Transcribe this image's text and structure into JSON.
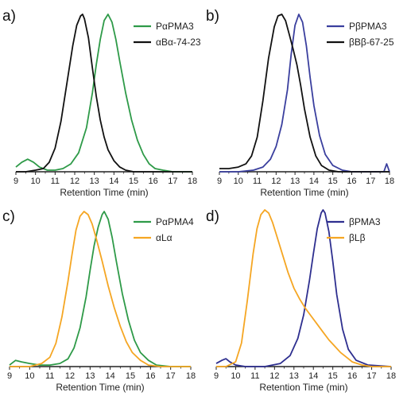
{
  "chart_data": [
    {
      "type": "line",
      "panel_label": "a)",
      "xlabel": "Retention Time (min)",
      "xlim": [
        9,
        18
      ],
      "x_ticks": [
        "9",
        "10",
        "11",
        "12",
        "13",
        "14",
        "15",
        "16",
        "17",
        "18"
      ],
      "legend_position": "top-right",
      "series": [
        {
          "name": "PαPMA3",
          "color": "#2e9a48",
          "x": [
            9.0,
            9.3,
            9.6,
            9.9,
            10.2,
            10.6,
            11.0,
            11.4,
            11.8,
            12.2,
            12.6,
            12.9,
            13.1,
            13.3,
            13.5,
            13.7,
            13.9,
            14.1,
            14.3,
            14.6,
            14.9,
            15.2,
            15.5,
            15.8,
            16.1,
            16.5,
            17.0,
            18.0
          ],
          "y": [
            0.03,
            0.06,
            0.08,
            0.06,
            0.03,
            0.01,
            0.01,
            0.02,
            0.05,
            0.12,
            0.28,
            0.5,
            0.68,
            0.84,
            0.96,
            1.0,
            0.95,
            0.84,
            0.7,
            0.5,
            0.33,
            0.2,
            0.11,
            0.05,
            0.02,
            0.01,
            0.0,
            0.0
          ]
        },
        {
          "name": "αBα-74-23",
          "color": "#111111",
          "x": [
            9.0,
            9.5,
            10.0,
            10.4,
            10.7,
            11.0,
            11.3,
            11.6,
            11.9,
            12.1,
            12.3,
            12.4,
            12.5,
            12.7,
            12.9,
            13.1,
            13.3,
            13.5,
            13.7,
            14.0,
            14.3,
            14.6,
            15.0,
            15.5,
            18.0
          ],
          "y": [
            0.0,
            0.0,
            0.01,
            0.02,
            0.06,
            0.15,
            0.32,
            0.56,
            0.8,
            0.93,
            0.99,
            1.0,
            0.97,
            0.85,
            0.66,
            0.48,
            0.33,
            0.22,
            0.14,
            0.07,
            0.03,
            0.01,
            0.0,
            0.0,
            0.0
          ]
        }
      ]
    },
    {
      "type": "line",
      "panel_label": "b)",
      "xlabel": "Retention Time (min)",
      "xlim": [
        9,
        18
      ],
      "x_ticks": [
        "9",
        "10",
        "11",
        "12",
        "13",
        "14",
        "15",
        "16",
        "17",
        "18"
      ],
      "legend_position": "top-right",
      "series": [
        {
          "name": "PβPMA3",
          "color": "#3a3f9e",
          "x": [
            9.0,
            10.0,
            10.8,
            11.3,
            11.7,
            12.0,
            12.3,
            12.6,
            12.8,
            13.0,
            13.2,
            13.4,
            13.6,
            13.8,
            14.0,
            14.3,
            14.6,
            15.0,
            15.5,
            16.0,
            17.0,
            17.7,
            17.85,
            18.0
          ],
          "y": [
            0.0,
            0.0,
            0.01,
            0.03,
            0.08,
            0.16,
            0.3,
            0.52,
            0.75,
            0.93,
            1.0,
            0.95,
            0.8,
            0.6,
            0.42,
            0.23,
            0.11,
            0.04,
            0.01,
            0.0,
            0.0,
            0.0,
            0.05,
            0.0
          ]
        },
        {
          "name": "βBβ-67-25",
          "color": "#111111",
          "x": [
            9.0,
            9.5,
            10.0,
            10.4,
            10.7,
            11.0,
            11.3,
            11.6,
            11.9,
            12.1,
            12.3,
            12.5,
            12.7,
            12.9,
            13.1,
            13.3,
            13.5,
            13.8,
            14.1,
            14.4,
            14.8,
            15.3,
            16.0,
            18.0
          ],
          "y": [
            0.02,
            0.02,
            0.03,
            0.05,
            0.1,
            0.22,
            0.45,
            0.72,
            0.92,
            0.99,
            1.0,
            0.96,
            0.87,
            0.78,
            0.68,
            0.55,
            0.4,
            0.22,
            0.1,
            0.04,
            0.01,
            0.0,
            0.0,
            0.0
          ]
        }
      ]
    },
    {
      "type": "line",
      "panel_label": "c)",
      "xlabel": "Retention Time (min)",
      "xlim": [
        9,
        18
      ],
      "x_ticks": [
        "9",
        "10",
        "11",
        "12",
        "13",
        "14",
        "15",
        "16",
        "17",
        "18"
      ],
      "legend_position": "top-right",
      "series": [
        {
          "name": "PαPMA4",
          "color": "#2e9a48",
          "x": [
            9.0,
            9.3,
            9.6,
            10.0,
            10.5,
            11.0,
            11.5,
            11.9,
            12.2,
            12.5,
            12.8,
            13.0,
            13.2,
            13.4,
            13.6,
            13.7,
            13.9,
            14.1,
            14.3,
            14.6,
            14.9,
            15.2,
            15.5,
            15.9,
            16.3,
            17.0,
            18.0
          ],
          "y": [
            0.01,
            0.04,
            0.03,
            0.02,
            0.01,
            0.01,
            0.02,
            0.05,
            0.12,
            0.25,
            0.45,
            0.62,
            0.78,
            0.9,
            0.98,
            1.0,
            0.95,
            0.83,
            0.68,
            0.47,
            0.3,
            0.17,
            0.09,
            0.04,
            0.01,
            0.0,
            0.0
          ]
        },
        {
          "name": "αLα",
          "color": "#f5a623",
          "x": [
            9.0,
            10.0,
            10.6,
            11.0,
            11.3,
            11.6,
            11.9,
            12.1,
            12.3,
            12.5,
            12.7,
            12.9,
            13.1,
            13.3,
            13.6,
            13.9,
            14.2,
            14.5,
            14.8,
            15.1,
            15.5,
            15.9,
            16.5,
            18.0
          ],
          "y": [
            0.0,
            0.0,
            0.02,
            0.06,
            0.15,
            0.32,
            0.55,
            0.72,
            0.88,
            0.97,
            1.0,
            0.98,
            0.92,
            0.83,
            0.68,
            0.52,
            0.38,
            0.26,
            0.16,
            0.09,
            0.04,
            0.01,
            0.0,
            0.0
          ]
        }
      ]
    },
    {
      "type": "line",
      "panel_label": "d)",
      "xlabel": "Retention Time (min)",
      "xlim": [
        9,
        18
      ],
      "x_ticks": [
        "9",
        "10",
        "11",
        "12",
        "13",
        "14",
        "15",
        "16",
        "17",
        "18"
      ],
      "legend_position": "top-right",
      "series": [
        {
          "name": "βPMA3",
          "color": "#2e2f8f",
          "x": [
            9.0,
            9.3,
            9.5,
            9.7,
            10.0,
            10.5,
            11.5,
            12.3,
            12.8,
            13.2,
            13.5,
            13.8,
            14.0,
            14.2,
            14.4,
            14.5,
            14.6,
            14.8,
            15.0,
            15.2,
            15.5,
            15.8,
            16.2,
            16.8,
            18.0
          ],
          "y": [
            0.02,
            0.04,
            0.05,
            0.03,
            0.01,
            0.0,
            0.0,
            0.02,
            0.07,
            0.18,
            0.33,
            0.55,
            0.72,
            0.88,
            0.98,
            1.0,
            0.98,
            0.86,
            0.67,
            0.46,
            0.24,
            0.11,
            0.04,
            0.01,
            0.0
          ]
        },
        {
          "name": "βLβ",
          "color": "#f5a623",
          "x": [
            9.0,
            9.5,
            10.0,
            10.3,
            10.6,
            10.9,
            11.1,
            11.3,
            11.5,
            11.7,
            11.9,
            12.1,
            12.4,
            12.7,
            13.0,
            13.3,
            13.6,
            13.9,
            14.2,
            14.5,
            14.8,
            15.1,
            15.4,
            15.7,
            16.0,
            16.5,
            17.0,
            18.0
          ],
          "y": [
            0.0,
            0.0,
            0.03,
            0.15,
            0.42,
            0.72,
            0.88,
            0.97,
            1.0,
            0.98,
            0.92,
            0.84,
            0.72,
            0.6,
            0.5,
            0.43,
            0.37,
            0.32,
            0.27,
            0.22,
            0.17,
            0.13,
            0.09,
            0.06,
            0.03,
            0.01,
            0.0,
            0.0
          ]
        }
      ]
    }
  ]
}
